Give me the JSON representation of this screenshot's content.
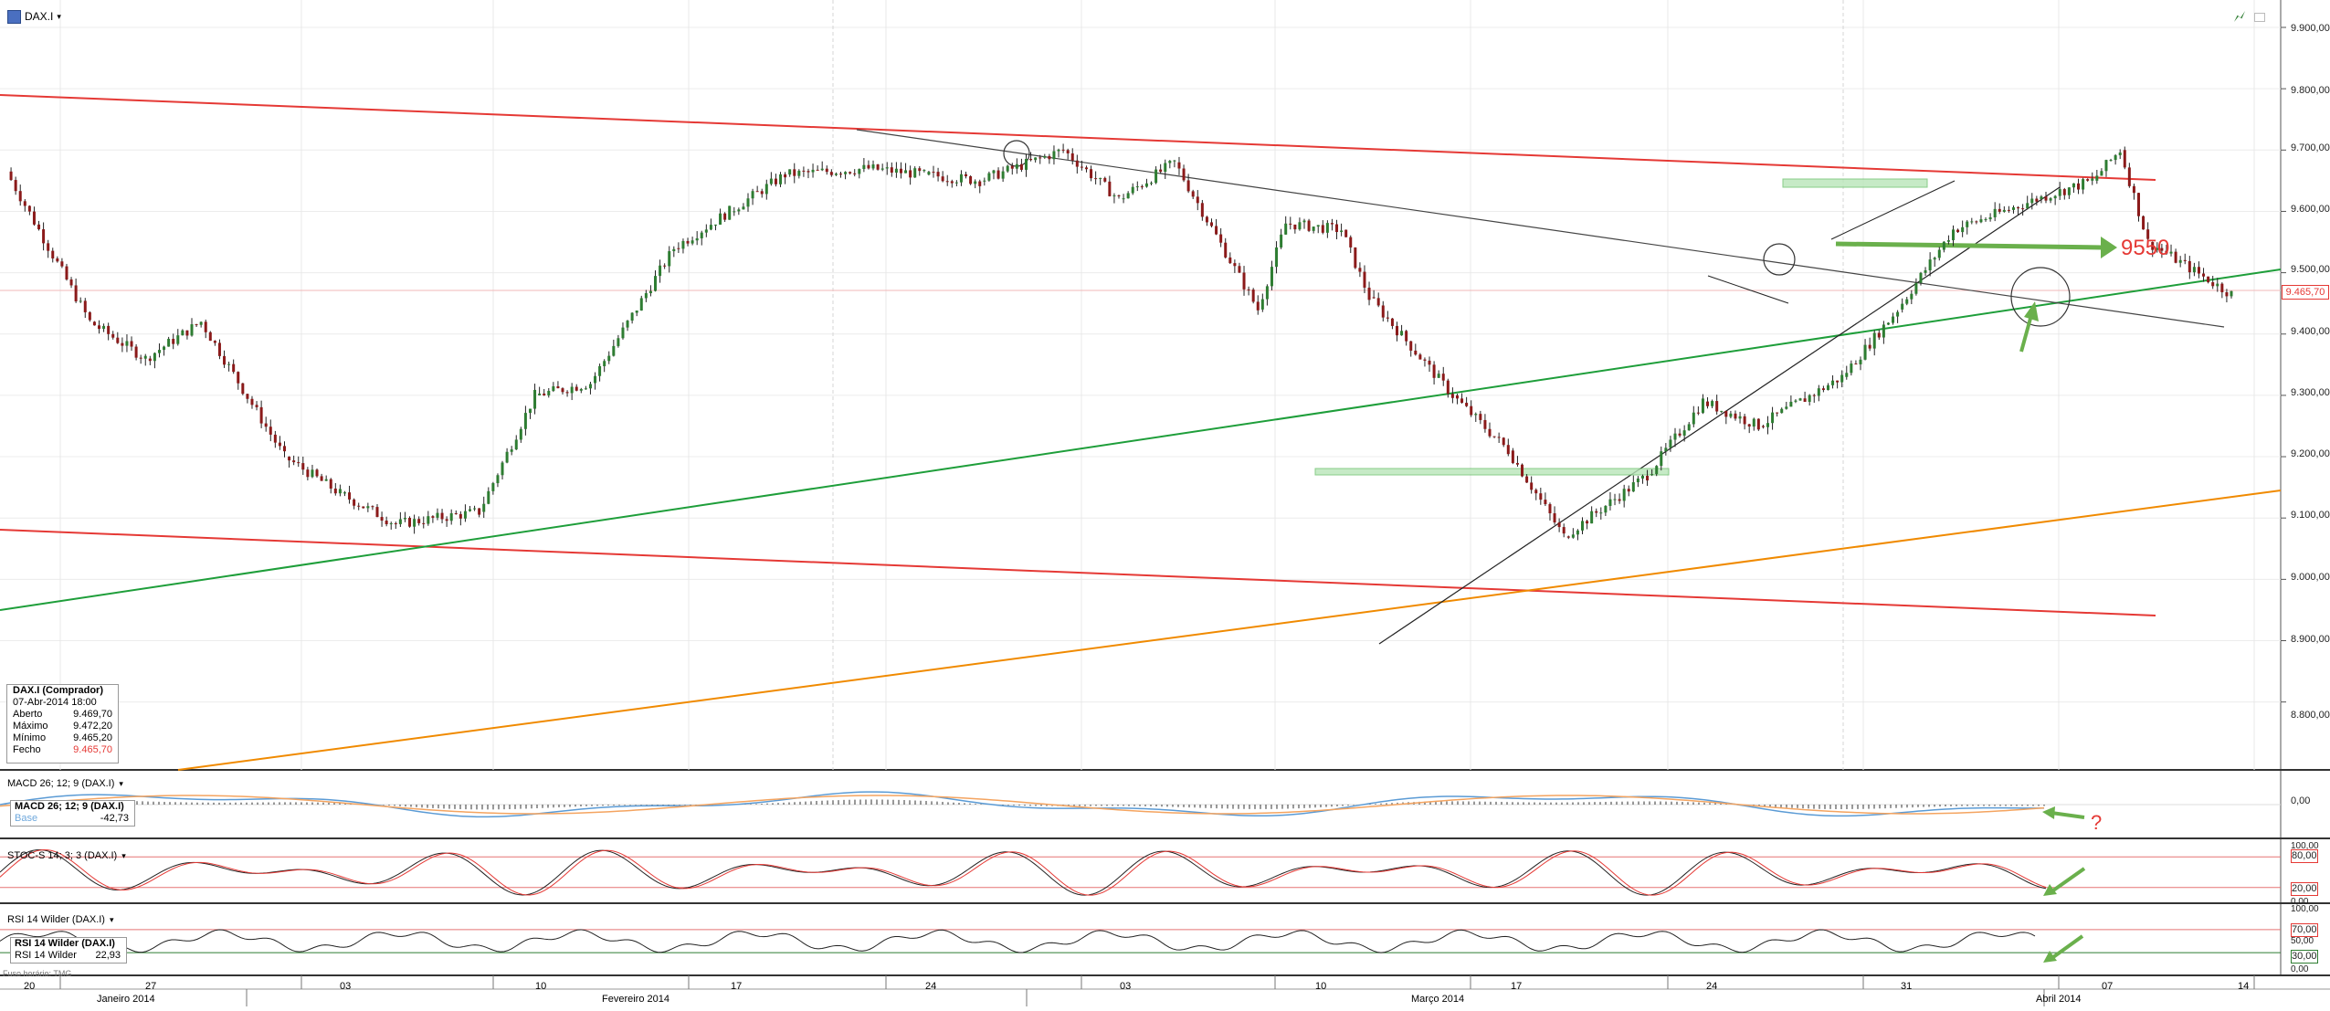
{
  "header": {
    "symbol": "DAX.I",
    "dropdown_glyph": "▾"
  },
  "info_box": {
    "title": "DAX.I (Comprador)",
    "datetime": "07-Abr-2014 18:00",
    "rows": [
      {
        "label": "Aberto",
        "value": "9.469,70"
      },
      {
        "label": "Máximo",
        "value": "9.472,20"
      },
      {
        "label": "Mínimo",
        "value": "9.465,20"
      },
      {
        "label": "Fecho",
        "value": "9.465,70"
      }
    ]
  },
  "price_axis": {
    "ticks": [
      "9.900,00",
      "9.800,00",
      "9.700,00",
      "9.600,00",
      "9.500,00",
      "9.400,00",
      "9.300,00",
      "9.200,00",
      "9.100,00",
      "9.000,00",
      "8.900,00",
      "8.800,00"
    ],
    "current": "9.465,70"
  },
  "annotations": {
    "target": "9550",
    "question": "?"
  },
  "macd": {
    "title": "MACD 26; 12; 9 (DAX.I)",
    "legend_title": "MACD 26; 12; 9 (DAX.I)",
    "legend_series": "Base",
    "legend_value": "-42,73",
    "axis_label": "0,00"
  },
  "stoc": {
    "title": "STOC-S 14; 3; 3 (DAX.I)",
    "axis_labels": [
      "100,00",
      "80,00",
      "20,00",
      "0,00"
    ]
  },
  "rsi": {
    "title": "RSI 14 Wilder (DAX.I)",
    "legend_title": "RSI 14 Wilder (DAX.I)",
    "legend_series": "RSI 14 Wilder",
    "legend_value": "22,93",
    "axis_labels": [
      "100,00",
      "70,00",
      "50,00",
      "30,00",
      "0,00"
    ]
  },
  "footer": {
    "timezone": "Fuso horário: TMG"
  },
  "date_axis": {
    "days": [
      "20",
      "27",
      "03",
      "10",
      "17",
      "24",
      "03",
      "10",
      "17",
      "24",
      "31",
      "07",
      "14"
    ],
    "months": [
      "Janeiro 2014",
      "Fevereiro 2014",
      "Março 2014",
      "Abril 2014"
    ]
  },
  "colors": {
    "up": "#2e7d32",
    "down": "#8b1a1a",
    "channel": "#e53935",
    "support": "#1e9e3a",
    "orange": "#f08a00",
    "arrow": "#6ab04c",
    "target": "#e53935"
  },
  "chart_data": {
    "type": "line",
    "title": "DAX.I",
    "xlabel": "",
    "ylabel": "",
    "ylim": [
      8720,
      9920
    ],
    "x": [
      "2014-01-17",
      "2014-01-20",
      "2014-01-22",
      "2014-01-24",
      "2014-01-27",
      "2014-01-29",
      "2014-01-31",
      "2014-02-03",
      "2014-02-05",
      "2014-02-07",
      "2014-02-10",
      "2014-02-12",
      "2014-02-14",
      "2014-02-17",
      "2014-02-19",
      "2014-02-21",
      "2014-02-24",
      "2014-02-26",
      "2014-02-28",
      "2014-03-03",
      "2014-03-04",
      "2014-03-06",
      "2014-03-07",
      "2014-03-10",
      "2014-03-12",
      "2014-03-14",
      "2014-03-17",
      "2014-03-19",
      "2014-03-21",
      "2014-03-24",
      "2014-03-26",
      "2014-03-28",
      "2014-03-31",
      "2014-04-02",
      "2014-04-03",
      "2014-04-04",
      "2014-04-07"
    ],
    "series": [
      {
        "values": [
          9665,
          9420,
          9360,
          9420,
          9200,
          9140,
          9090,
          9110,
          9300,
          9320,
          9540,
          9600,
          9660,
          9670,
          9660,
          9650,
          9700,
          9620,
          9680,
          9440,
          9580,
          9570,
          9460,
          9300,
          9210,
          9070,
          9170,
          9290,
          9250,
          9330,
          9440,
          9570,
          9620,
          9650,
          9700,
          9550,
          9465
        ]
      }
    ],
    "indicators": {
      "macd_last": -42.73,
      "rsi_last": 22.93,
      "stoch_levels": [
        80,
        20
      ],
      "rsi_levels": [
        70,
        30
      ]
    }
  }
}
